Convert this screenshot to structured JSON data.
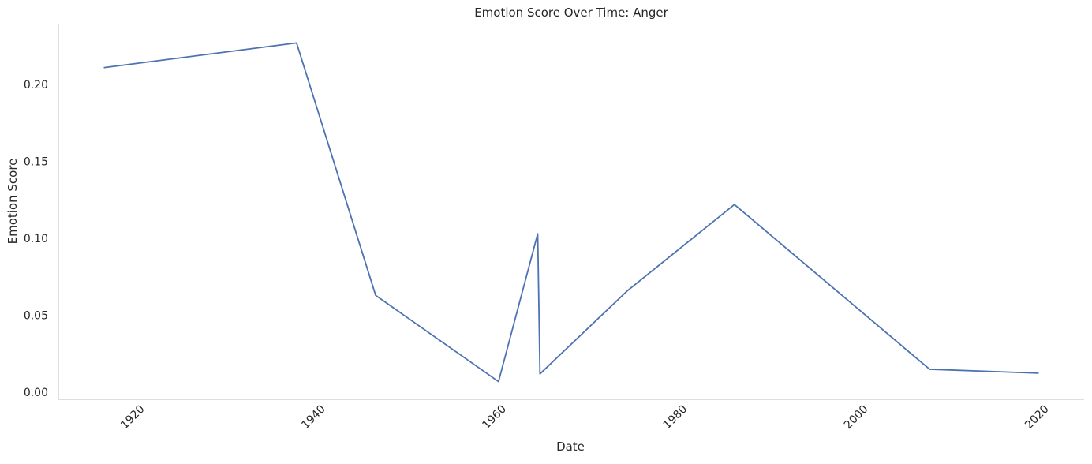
{
  "chart_data": {
    "type": "line",
    "title": "Emotion Score Over Time: Anger",
    "xlabel": "Date",
    "ylabel": "Emotion Score",
    "x_ticks": [
      "1920",
      "1940",
      "1960",
      "1980",
      "2000",
      "2020"
    ],
    "y_ticks": [
      "0.00",
      "0.05",
      "0.10",
      "0.15",
      "0.20"
    ],
    "xlim": [
      "1911-12",
      "2025-05"
    ],
    "ylim": [
      -0.0045,
      0.2395
    ],
    "grid": false,
    "legend": false,
    "series": [
      {
        "color": "#4c72b0",
        "points": [
          {
            "x": "1917-01",
            "y": 0.211
          },
          {
            "x": "1938-04",
            "y": 0.227
          },
          {
            "x": "1947-01",
            "y": 0.063
          },
          {
            "x": "1960-08",
            "y": 0.007
          },
          {
            "x": "1964-12",
            "y": 0.103
          },
          {
            "x": "1965-03",
            "y": 0.012
          },
          {
            "x": "1974-11",
            "y": 0.066
          },
          {
            "x": "1986-09",
            "y": 0.122
          },
          {
            "x": "2008-04",
            "y": 0.015
          },
          {
            "x": "2020-04",
            "y": 0.0125
          }
        ]
      }
    ]
  }
}
